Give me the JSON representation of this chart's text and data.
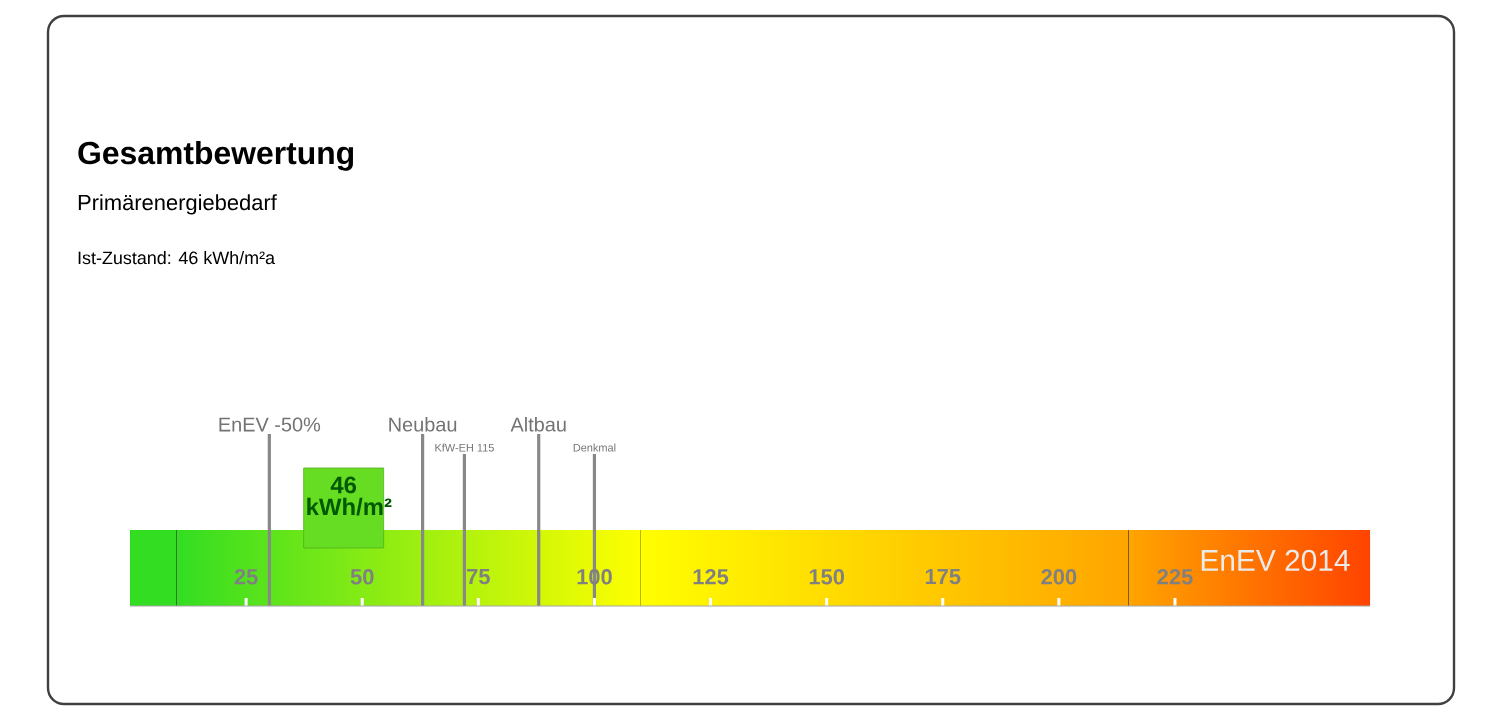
{
  "chart_data": {
    "type": "scatter",
    "title": "Gesamtbewertung",
    "subtitle": "Primärenergiebedarf",
    "annotations": [
      "Ist-Zustand:  46 kWh/m²a",
      "EnEV 2014"
    ],
    "orientation": "horizontal",
    "categories": [
      null
    ],
    "values": [
      46
    ],
    "value_labels": [
      "46 kWh/m²"
    ],
    "color": "#66dd22",
    "marker": "square",
    "xlim": [
      0,
      267
    ],
    "xticks": [
      25,
      50,
      75,
      100,
      125,
      150,
      175,
      200,
      225
    ],
    "tick_labels": "x",
    "grid": false,
    "bands": [
      {
        "axis": "x",
        "from": 0,
        "to": 10,
        "color": "#33dd22"
      },
      {
        "axis": "x",
        "from": 10,
        "to": 110,
        "color": "#ffff00"
      },
      {
        "axis": "x",
        "from": 110,
        "to": 215,
        "color": "#ffa500"
      },
      {
        "axis": "x",
        "from": 215,
        "to": 267,
        "color": "#ff4400"
      }
    ],
    "ref_lines": [
      {
        "axis": "x",
        "value": 30,
        "label": "EnEV -50%",
        "color": "#888888"
      },
      {
        "axis": "x",
        "value": 63,
        "label": "Neubau",
        "color": "#888888"
      },
      {
        "axis": "x",
        "value": 72,
        "label": "KfW-EH 115",
        "color": "#888888"
      },
      {
        "axis": "x",
        "value": 88,
        "label": "Altbau",
        "color": "#888888"
      },
      {
        "axis": "x",
        "value": 100,
        "label": "Denkmal",
        "color": "#888888"
      }
    ]
  }
}
